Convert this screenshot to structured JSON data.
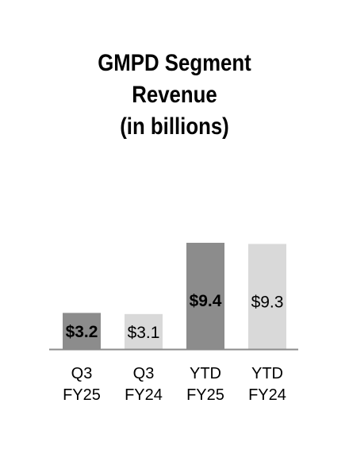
{
  "chart_data": {
    "type": "bar",
    "title_lines": [
      "GMPD Segment",
      "Revenue",
      "(in billions)"
    ],
    "categories": [
      [
        "Q3",
        "FY25"
      ],
      [
        "Q3",
        "FY24"
      ],
      [
        "YTD",
        "FY25"
      ],
      [
        "YTD",
        "FY24"
      ]
    ],
    "values": [
      3.2,
      3.1,
      9.4,
      9.3
    ],
    "value_labels": [
      "$3.2",
      "$3.1",
      "$9.4",
      "$9.3"
    ],
    "ylim": [
      0,
      9.4
    ],
    "grid": false,
    "legend": "none",
    "colors": {
      "current": "#8c8c8c",
      "prior": "#d9d9d9",
      "axis": "#8c8c8c",
      "text": "#000000"
    }
  }
}
